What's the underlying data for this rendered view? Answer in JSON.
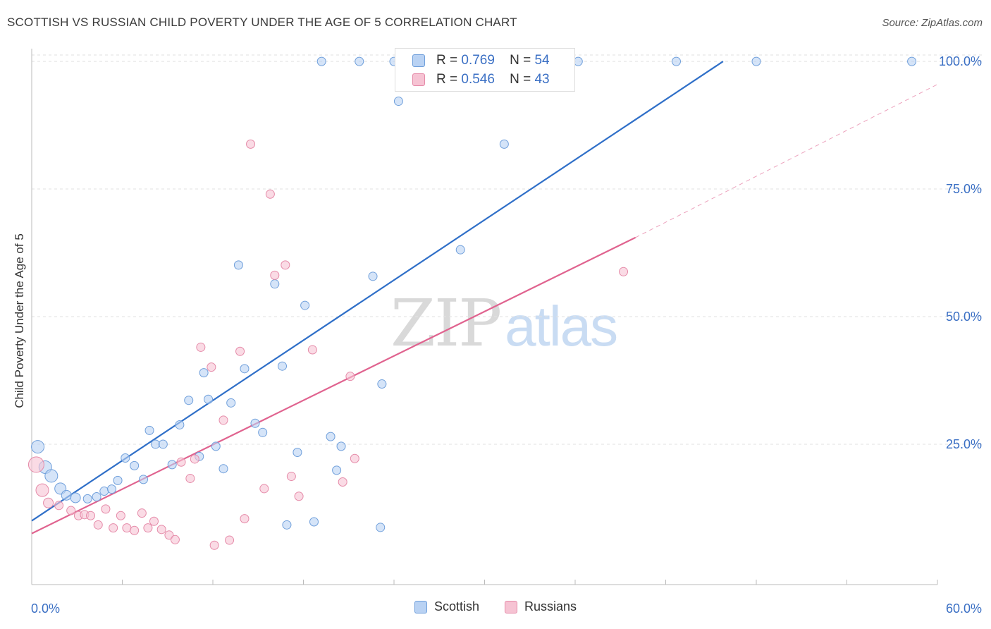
{
  "title": "SCOTTISH VS RUSSIAN CHILD POVERTY UNDER THE AGE OF 5 CORRELATION CHART",
  "source": "Source: ZipAtlas.com",
  "watermark": {
    "zip": "ZIP",
    "atlas": "atlas"
  },
  "colors": {
    "scottish_fill": "#b9d2f3",
    "scottish_stroke": "#6f9fdb",
    "scottish_line": "#2f6fc8",
    "russian_fill": "#f6c3d3",
    "russian_stroke": "#e58aa8",
    "russian_line": "#e0638f",
    "axis_label": "#3a6fc4",
    "grid": "#e2e2e2"
  },
  "legend": {
    "rows": [
      {
        "r_label": "R =",
        "r_value": "0.769",
        "n_label": "N =",
        "n_value": "54"
      },
      {
        "r_label": "R =",
        "r_value": "0.546",
        "n_label": "N =",
        "n_value": "43"
      }
    ]
  },
  "bottom_legend": {
    "scottish": "Scottish",
    "russians": "Russians"
  },
  "chart_data": {
    "type": "scatter",
    "title": "SCOTTISH VS RUSSIAN CHILD POVERTY UNDER THE AGE OF 5 CORRELATION CHART",
    "xlabel": "",
    "ylabel": "Child Poverty Under the Age of 5",
    "xlim": [
      0,
      60
    ],
    "ylim": [
      -2.5,
      102.5
    ],
    "x_tick_labels": [
      "0.0%",
      "60.0%"
    ],
    "y_ticks": [
      25,
      50,
      75,
      100
    ],
    "y_tick_labels": [
      "25.0%",
      "50.0%",
      "75.0%",
      "100.0%"
    ],
    "grid": true,
    "legend_position": "top-center",
    "series": [
      {
        "name": "Scottish",
        "r": 0.769,
        "n": 54,
        "trend": {
          "x0": 0,
          "y0": 10.0,
          "x1": 45.8,
          "y1": 100.0
        },
        "points": [
          [
            0.4,
            24.5,
            18
          ],
          [
            0.9,
            20.5,
            18
          ],
          [
            1.3,
            18.8,
            18
          ],
          [
            1.9,
            16.3,
            16
          ],
          [
            2.3,
            15.0,
            14
          ],
          [
            2.9,
            14.5,
            14
          ],
          [
            3.7,
            14.3,
            12
          ],
          [
            4.3,
            14.7,
            12
          ],
          [
            4.8,
            15.8,
            12
          ],
          [
            5.3,
            16.2,
            12
          ],
          [
            5.7,
            17.9,
            12
          ],
          [
            6.2,
            22.3,
            12
          ],
          [
            6.8,
            20.8,
            12
          ],
          [
            7.4,
            18.1,
            12
          ],
          [
            7.8,
            27.7,
            12
          ],
          [
            8.2,
            25.0,
            12
          ],
          [
            8.7,
            25.0,
            12
          ],
          [
            9.3,
            21.0,
            12
          ],
          [
            9.8,
            28.8,
            12
          ],
          [
            10.4,
            33.6,
            12
          ],
          [
            11.1,
            22.6,
            12
          ],
          [
            11.4,
            39.0,
            12
          ],
          [
            11.7,
            33.8,
            12
          ],
          [
            12.2,
            24.6,
            12
          ],
          [
            12.7,
            20.2,
            12
          ],
          [
            13.2,
            33.1,
            12
          ],
          [
            13.7,
            60.1,
            12
          ],
          [
            14.1,
            39.8,
            12
          ],
          [
            14.8,
            29.1,
            12
          ],
          [
            15.3,
            27.3,
            12
          ],
          [
            16.1,
            56.4,
            12
          ],
          [
            16.6,
            40.3,
            12
          ],
          [
            16.9,
            9.2,
            12
          ],
          [
            17.6,
            23.4,
            12
          ],
          [
            18.1,
            52.2,
            12
          ],
          [
            18.7,
            9.8,
            12
          ],
          [
            19.2,
            100.0,
            12
          ],
          [
            19.8,
            26.5,
            12
          ],
          [
            20.2,
            19.9,
            12
          ],
          [
            20.5,
            24.6,
            12
          ],
          [
            21.7,
            100.0,
            12
          ],
          [
            22.6,
            57.9,
            12
          ],
          [
            23.2,
            36.8,
            12
          ],
          [
            23.1,
            8.7,
            12
          ],
          [
            24.0,
            100.0,
            12
          ],
          [
            24.3,
            92.2,
            12
          ],
          [
            25.3,
            100.0,
            12
          ],
          [
            26.7,
            100.0,
            12
          ],
          [
            28.4,
            63.1,
            12
          ],
          [
            31.3,
            83.8,
            12
          ],
          [
            36.2,
            100.0,
            12
          ],
          [
            42.7,
            100.0,
            12
          ],
          [
            48.0,
            100.0,
            12
          ],
          [
            58.3,
            100.0,
            12
          ]
        ]
      },
      {
        "name": "Russians",
        "r": 0.546,
        "n": 43,
        "trend": {
          "x0": 0,
          "y0": 7.5,
          "x1": 40.0,
          "y1": 65.5
        },
        "dashed_extension": {
          "x0": 40.0,
          "y0": 65.5,
          "x1": 60.0,
          "y1": 95.5
        },
        "points": [
          [
            0.3,
            21.0,
            22
          ],
          [
            0.7,
            16.0,
            18
          ],
          [
            1.1,
            13.5,
            14
          ],
          [
            1.8,
            13.0,
            12
          ],
          [
            2.6,
            12.0,
            12
          ],
          [
            3.1,
            11.0,
            12
          ],
          [
            3.5,
            11.2,
            12
          ],
          [
            3.9,
            11.0,
            12
          ],
          [
            4.4,
            9.2,
            12
          ],
          [
            4.9,
            12.3,
            12
          ],
          [
            5.4,
            8.6,
            12
          ],
          [
            5.9,
            11.0,
            12
          ],
          [
            6.3,
            8.6,
            12
          ],
          [
            6.8,
            8.1,
            12
          ],
          [
            7.3,
            11.5,
            12
          ],
          [
            7.7,
            8.6,
            12
          ],
          [
            8.1,
            9.9,
            12
          ],
          [
            8.6,
            8.3,
            12
          ],
          [
            9.1,
            7.2,
            12
          ],
          [
            9.5,
            6.3,
            12
          ],
          [
            9.9,
            21.5,
            12
          ],
          [
            10.5,
            18.3,
            12
          ],
          [
            10.8,
            22.1,
            12
          ],
          [
            11.2,
            44.0,
            12
          ],
          [
            11.9,
            40.1,
            12
          ],
          [
            12.1,
            5.2,
            12
          ],
          [
            12.7,
            29.7,
            12
          ],
          [
            13.1,
            6.2,
            12
          ],
          [
            13.8,
            43.2,
            12
          ],
          [
            14.1,
            10.4,
            12
          ],
          [
            14.5,
            83.8,
            12
          ],
          [
            15.4,
            16.3,
            12
          ],
          [
            15.8,
            74.0,
            12
          ],
          [
            16.1,
            58.1,
            12
          ],
          [
            16.8,
            60.1,
            12
          ],
          [
            17.2,
            18.7,
            12
          ],
          [
            17.7,
            14.8,
            12
          ],
          [
            18.6,
            43.5,
            12
          ],
          [
            20.6,
            17.6,
            12
          ],
          [
            21.1,
            38.3,
            12
          ],
          [
            21.4,
            22.2,
            12
          ],
          [
            39.2,
            58.8,
            12
          ],
          [
            14.0,
            5.8,
            0
          ]
        ]
      }
    ]
  }
}
